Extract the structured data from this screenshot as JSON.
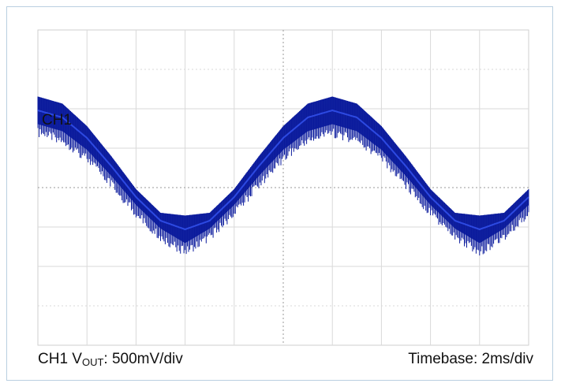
{
  "chart_data": {
    "type": "line",
    "title": "",
    "channel_label": "CH1",
    "footer_left": {
      "prefix": "CH1 V",
      "subscript": "OUT",
      "suffix": ": 500mV/div"
    },
    "footer_right": "Timebase: 2ms/div",
    "grid": true,
    "divisions": {
      "x": 10,
      "y": 8
    },
    "series": [
      {
        "color": "#0a1a9c",
        "x_unit": "ms",
        "y_unit": "V",
        "x": [
          0,
          1,
          2,
          3,
          4,
          5,
          6,
          7,
          8,
          9,
          10,
          11,
          12,
          13,
          14,
          15,
          16,
          17,
          18,
          19,
          20
        ],
        "y": [
          0.98,
          0.89,
          0.63,
          0.27,
          -0.12,
          -0.42,
          -0.53,
          -0.42,
          -0.12,
          0.27,
          0.63,
          0.89,
          0.98,
          0.89,
          0.63,
          0.27,
          -0.12,
          -0.42,
          -0.53,
          -0.42,
          -0.12
        ],
        "ripple_vpp": [
          0.35,
          0.35,
          0.3,
          0.25,
          0.2,
          0.2,
          0.35,
          0.2,
          0.2,
          0.25,
          0.3,
          0.35,
          0.35,
          0.35,
          0.3,
          0.25,
          0.2,
          0.2,
          0.35,
          0.2,
          0.2
        ]
      }
    ]
  }
}
